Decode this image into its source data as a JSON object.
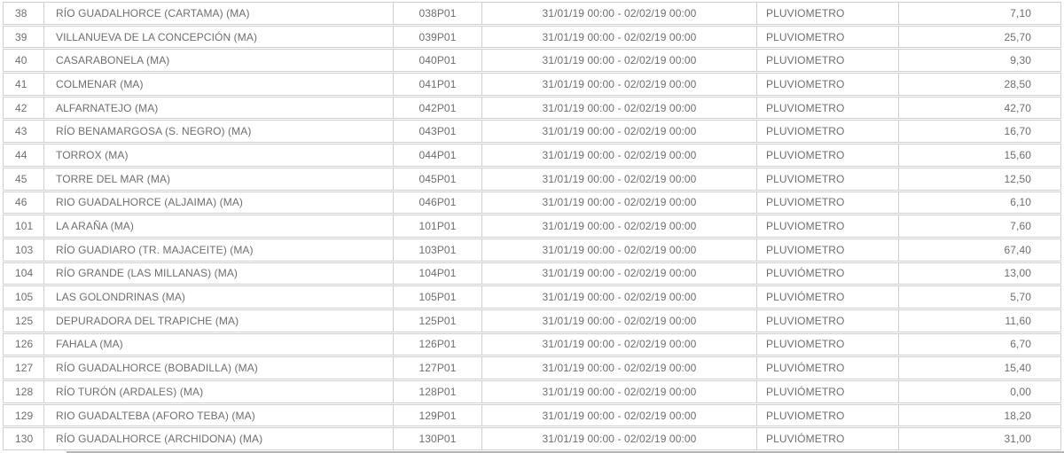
{
  "colors": {
    "background": "#ffffff",
    "row_border": "#cfcfcf",
    "text": "#6e6e6e",
    "partial_next_row_edge": "#b5b5b5"
  },
  "table": {
    "description_labels": {
      "sensor_type_plain": "PLUVIOMETRO",
      "sensor_type_accented": "PLUVIÓMETRO",
      "shared_period": "31/01/19 00:00 - 02/02/19 00:00"
    },
    "rows": [
      {
        "id": "38",
        "station": "RÍO GUADALHORCE (CARTAMA) (MA)",
        "code": "038P01",
        "period": "31/01/19 00:00 - 02/02/19 00:00",
        "type": "PLUVIOMETRO",
        "value": "7,10"
      },
      {
        "id": "39",
        "station": "VILLANUEVA DE LA CONCEPCIÓN (MA)",
        "code": "039P01",
        "period": "31/01/19 00:00 - 02/02/19 00:00",
        "type": "PLUVIOMETRO",
        "value": "25,70"
      },
      {
        "id": "40",
        "station": "CASARABONELA (MA)",
        "code": "040P01",
        "period": "31/01/19 00:00 - 02/02/19 00:00",
        "type": "PLUVIOMETRO",
        "value": "9,30"
      },
      {
        "id": "41",
        "station": "COLMENAR (MA)",
        "code": "041P01",
        "period": "31/01/19 00:00 - 02/02/19 00:00",
        "type": "PLUVIOMETRO",
        "value": "28,50"
      },
      {
        "id": "42",
        "station": "ALFARNATEJO (MA)",
        "code": "042P01",
        "period": "31/01/19 00:00 - 02/02/19 00:00",
        "type": "PLUVIOMETRO",
        "value": "42,70"
      },
      {
        "id": "43",
        "station": "RÍO BENAMARGOSA (S. NEGRO) (MA)",
        "code": "043P01",
        "period": "31/01/19 00:00 - 02/02/19 00:00",
        "type": "PLUVIOMETRO",
        "value": "16,70"
      },
      {
        "id": "44",
        "station": "TORROX (MA)",
        "code": "044P01",
        "period": "31/01/19 00:00 - 02/02/19 00:00",
        "type": "PLUVIOMETRO",
        "value": "15,60"
      },
      {
        "id": "45",
        "station": "TORRE DEL MAR (MA)",
        "code": "045P01",
        "period": "31/01/19 00:00 - 02/02/19 00:00",
        "type": "PLUVIOMETRO",
        "value": "12,50"
      },
      {
        "id": "46",
        "station": "RIO GUADALHORCE (ALJAIMA) (MA)",
        "code": "046P01",
        "period": "31/01/19 00:00 - 02/02/19 00:00",
        "type": "PLUVIOMETRO",
        "value": "6,10"
      },
      {
        "id": "101",
        "station": "LA ARAÑA (MA)",
        "code": "101P01",
        "period": "31/01/19 00:00 - 02/02/19 00:00",
        "type": "PLUVIOMETRO",
        "value": "7,60"
      },
      {
        "id": "103",
        "station": "RÍO GUADIARO (TR. MAJACEITE) (MA)",
        "code": "103P01",
        "period": "31/01/19 00:00 - 02/02/19 00:00",
        "type": "PLUVIOMETRO",
        "value": "67,40"
      },
      {
        "id": "104",
        "station": "RÍO GRANDE (LAS MILLANAS) (MA)",
        "code": "104P01",
        "period": "31/01/19 00:00 - 02/02/19 00:00",
        "type": "PLUVIÓMETRO",
        "value": "13,00"
      },
      {
        "id": "105",
        "station": "LAS GOLONDRINAS (MA)",
        "code": "105P01",
        "period": "31/01/19 00:00 - 02/02/19 00:00",
        "type": "PLUVIÓMETRO",
        "value": "5,70"
      },
      {
        "id": "125",
        "station": "DEPURADORA DEL TRAPICHE (MA)",
        "code": "125P01",
        "period": "31/01/19 00:00 - 02/02/19 00:00",
        "type": "PLUVIOMETRO",
        "value": "11,60"
      },
      {
        "id": "126",
        "station": "FAHALA (MA)",
        "code": "126P01",
        "period": "31/01/19 00:00 - 02/02/19 00:00",
        "type": "PLUVIOMETRO",
        "value": "6,70"
      },
      {
        "id": "127",
        "station": "RÍO GUADALHORCE (BOBADILLA) (MA)",
        "code": "127P01",
        "period": "31/01/19 00:00 - 02/02/19 00:00",
        "type": "PLUVIÓMETRO",
        "value": "15,40"
      },
      {
        "id": "128",
        "station": "RÍO TURÓN (ARDALES) (MA)",
        "code": "128P01",
        "period": "31/01/19 00:00 - 02/02/19 00:00",
        "type": "PLUVIÓMETRO",
        "value": "0,00"
      },
      {
        "id": "129",
        "station": "RIO GUADALTEBA (AFORO TEBA) (MA)",
        "code": "129P01",
        "period": "31/01/19 00:00 - 02/02/19 00:00",
        "type": "PLUVIOMETRO",
        "value": "18,20"
      },
      {
        "id": "130",
        "station": "RÍO GUADALHORCE (ARCHIDONA) (MA)",
        "code": "130P01",
        "period": "31/01/19 00:00 - 02/02/19 00:00",
        "type": "PLUVIÓMETRO",
        "value": "31,00"
      }
    ]
  }
}
